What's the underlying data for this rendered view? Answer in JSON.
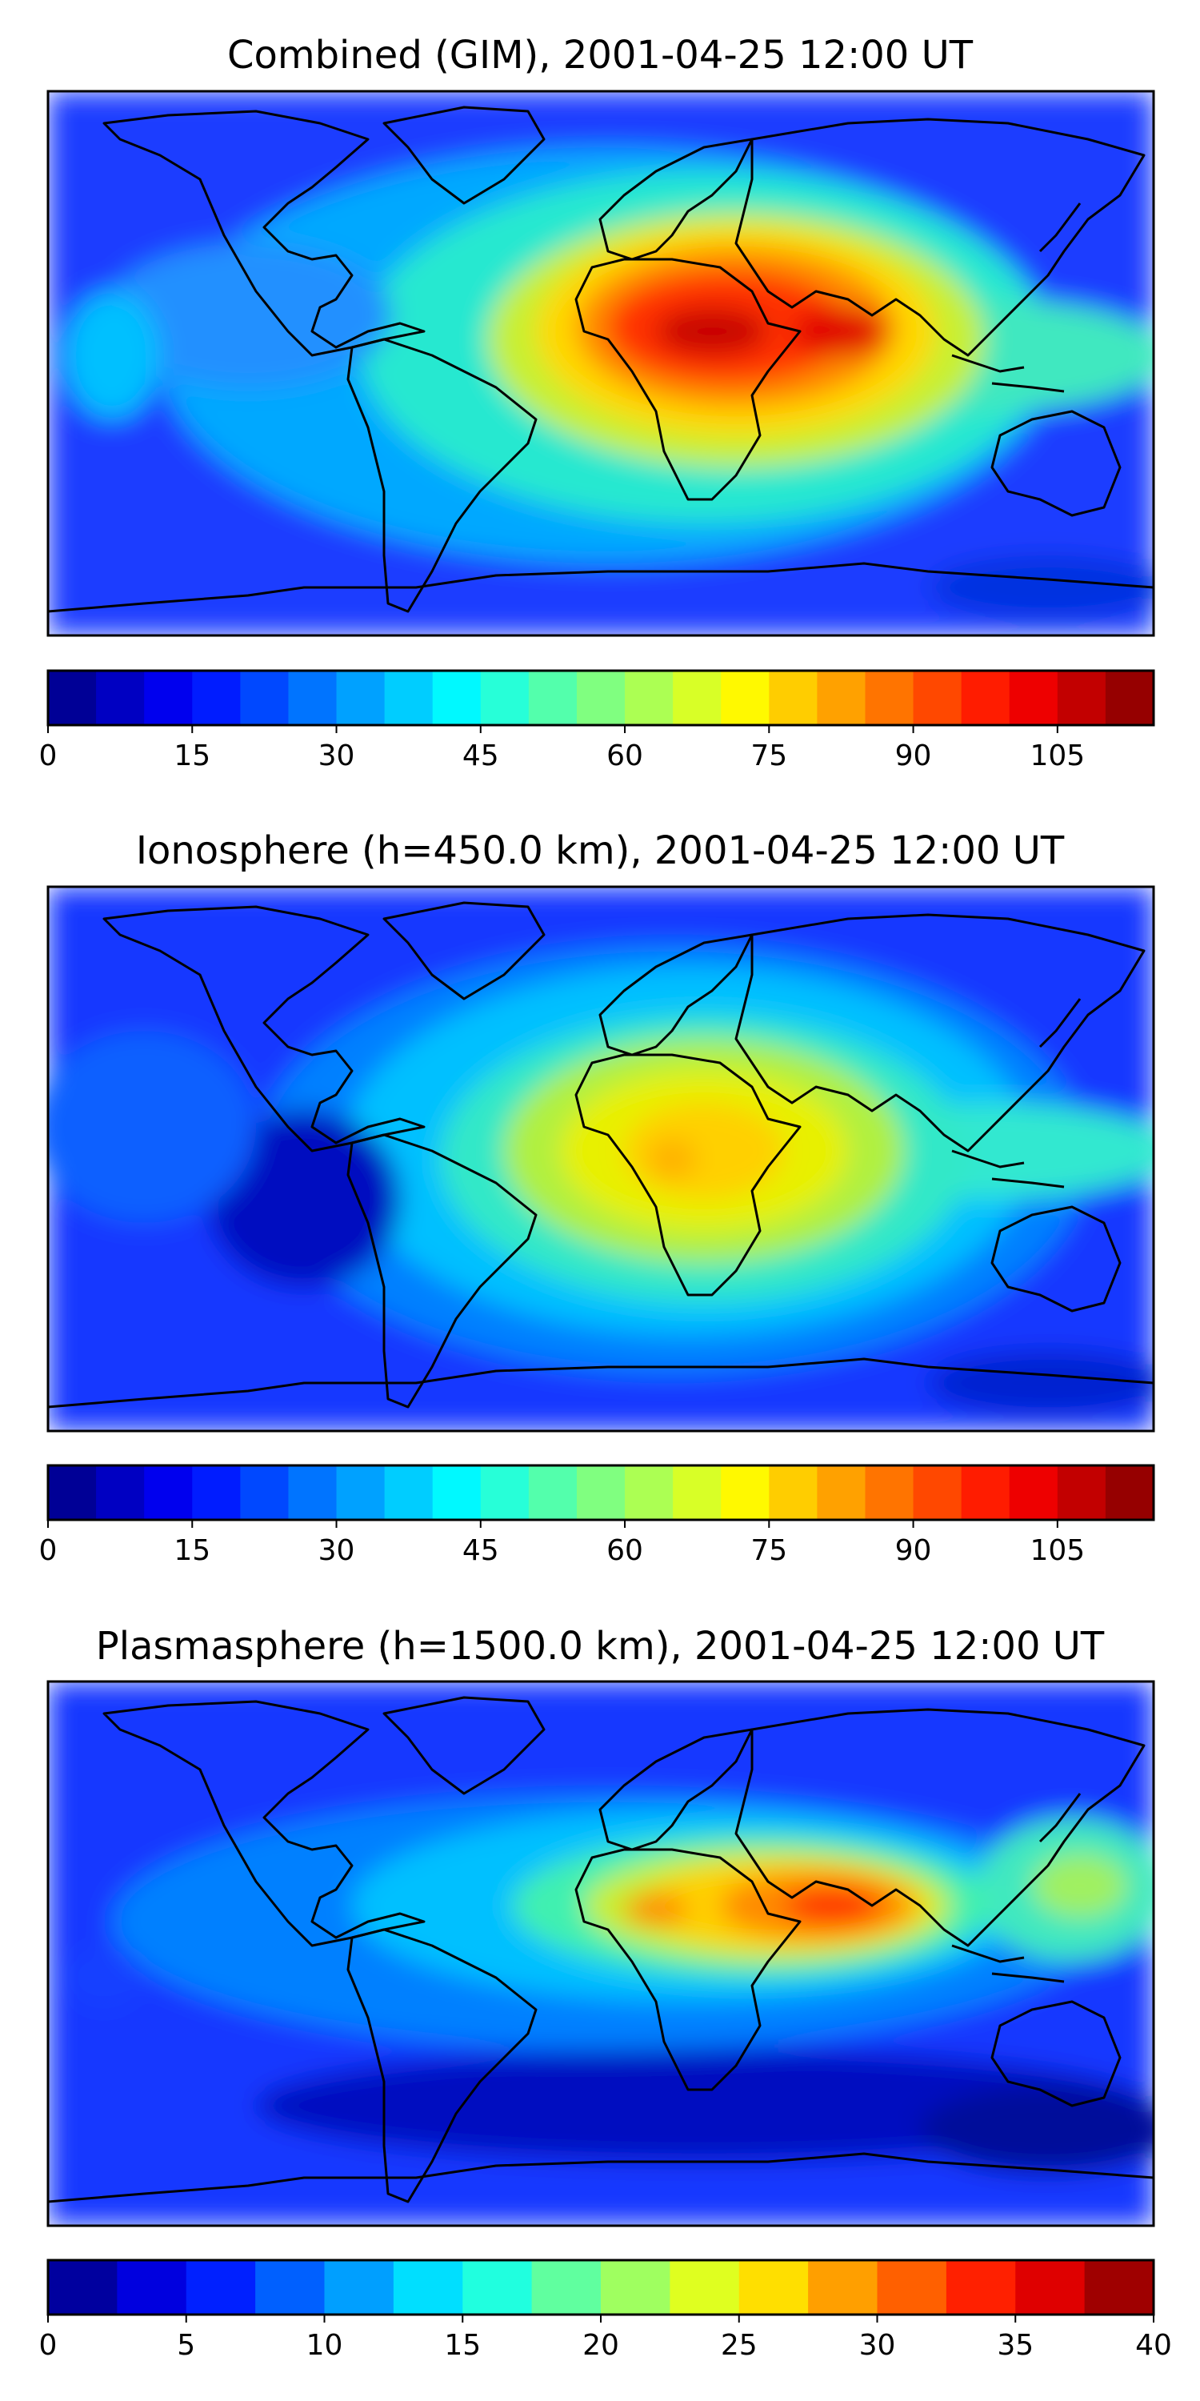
{
  "figure": {
    "title_combined": "Combined (GIM), 2001-04-25 12:00 UT",
    "title_ionosphere": "Ionosphere  (h=450.0 km), 2001-04-25 12:00 UT",
    "title_plasmasphere": "Plasmasphere (h=1500.0 km), 2001-04-25 12:00 UT"
  },
  "chart_data": [
    {
      "type": "heatmap",
      "title": "Combined (GIM), 2001-04-25 12:00 UT",
      "projection": "global world map (lon -180..180, lat -90..90) with coastlines",
      "colormap": "jet",
      "colorbar": {
        "ticks": [
          "0",
          "15",
          "30",
          "45",
          "60",
          "75",
          "90",
          "105"
        ],
        "range": [
          0,
          115
        ],
        "step": 5
      },
      "features": [
        {
          "description": "equatorial anomaly maximum over Africa / Arabia",
          "lon": 20,
          "lat": 5,
          "value": 110
        },
        {
          "description": "secondary maximum over Arabian Sea",
          "lon": 60,
          "lat": 5,
          "value": 100
        },
        {
          "description": "SE Asia band",
          "lon": 110,
          "lat": 0,
          "value": 55
        },
        {
          "description": "Pacific / American sector",
          "lon": -120,
          "lat": 0,
          "value": 35
        },
        {
          "description": "polar caps",
          "lat": 70,
          "value": 15
        }
      ]
    },
    {
      "type": "heatmap",
      "title": "Ionosphere  (h=450.0 km), 2001-04-25 12:00 UT",
      "projection": "global world map (lon -180..180, lat -90..90) with coastlines",
      "colormap": "jet",
      "colorbar": {
        "ticks": [
          "0",
          "15",
          "30",
          "45",
          "60",
          "75",
          "90",
          "105"
        ],
        "range": [
          0,
          115
        ],
        "step": 5
      },
      "features": [
        {
          "description": "maximum over central Africa",
          "lon": 20,
          "lat": 5,
          "value": 80
        },
        {
          "description": "SE Asia band",
          "lon": 110,
          "lat": 0,
          "value": 50
        },
        {
          "description": "Pacific sector",
          "lon": -120,
          "lat": -5,
          "value": 20
        },
        {
          "description": "polar caps",
          "lat": 70,
          "value": 12
        }
      ]
    },
    {
      "type": "heatmap",
      "title": "Plasmasphere (h=1500.0 km), 2001-04-25 12:00 UT",
      "projection": "global world map (lon -180..180, lat -90..90) with coastlines",
      "colormap": "jet",
      "colorbar": {
        "ticks": [
          "0",
          "5",
          "10",
          "15",
          "20",
          "25",
          "30",
          "35",
          "40"
        ],
        "range": [
          0,
          40
        ],
        "step": 2.5
      },
      "features": [
        {
          "description": "maximum over Arabian Sea / India",
          "lon": 65,
          "lat": 18,
          "value": 36
        },
        {
          "description": "secondary maximum over West Africa",
          "lon": 0,
          "lat": 18,
          "value": 30
        },
        {
          "description": "Western Pacific",
          "lon": 150,
          "lat": 15,
          "value": 20
        },
        {
          "description": "southern mid-latitude minimum",
          "lon": 60,
          "lat": -40,
          "value": 2
        },
        {
          "description": "polar caps",
          "lat": 70,
          "value": 8
        }
      ]
    }
  ]
}
